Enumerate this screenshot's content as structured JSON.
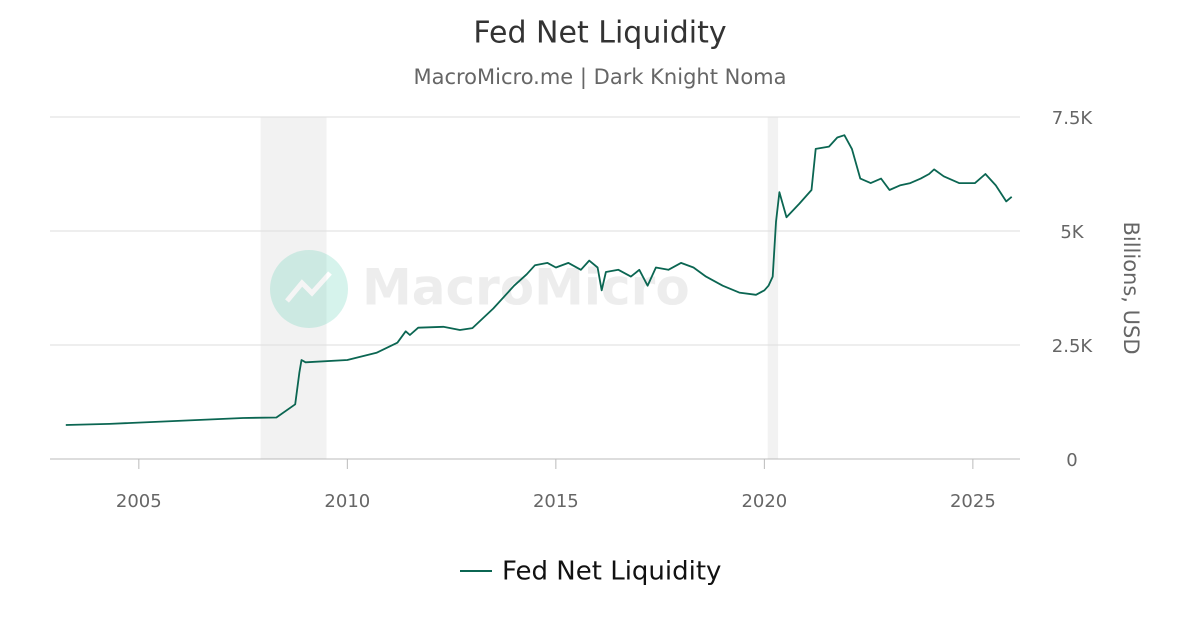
{
  "chart_data": {
    "type": "line",
    "title": "Fed Net Liquidity",
    "subtitle": "MacroMicro.me | Dark Knight Noma",
    "watermark": "MacroMicro",
    "y_axis_label": "Billions, USD",
    "xlim": [
      2002.87,
      2026.13
    ],
    "xticks": [
      2005,
      2010,
      2015,
      2020,
      2025
    ],
    "ylim": [
      0,
      7500
    ],
    "yticks": [
      0,
      {
        "value": 2500,
        "label": "2.5K"
      },
      {
        "value": 5000,
        "label": "5K"
      },
      {
        "value": 7500,
        "label": "7.5K"
      }
    ],
    "grid": true,
    "shaded_ranges": [
      [
        2007.92,
        2009.5
      ],
      [
        2020.08,
        2020.33
      ]
    ],
    "shade_color": "#f2f2f2",
    "legend": "bottom",
    "x": [
      2003.25,
      2004.3,
      2007.5,
      2008.3,
      2008.75,
      2008.85,
      2008.9,
      2009.0,
      2010.0,
      2010.7,
      2011.2,
      2011.4,
      2011.5,
      2011.7,
      2012.3,
      2012.7,
      2013.0,
      2013.5,
      2014.0,
      2014.3,
      2014.5,
      2014.8,
      2015.0,
      2015.3,
      2015.6,
      2015.8,
      2016.0,
      2016.1,
      2016.2,
      2016.5,
      2016.8,
      2017.0,
      2017.2,
      2017.4,
      2017.7,
      2018.0,
      2018.3,
      2018.6,
      2019.0,
      2019.4,
      2019.8,
      2020.0,
      2020.1,
      2020.2,
      2020.28,
      2020.36,
      2020.53,
      2020.84,
      2021.13,
      2021.23,
      2021.55,
      2021.75,
      2021.92,
      2022.1,
      2022.3,
      2022.55,
      2022.8,
      2023.0,
      2023.25,
      2023.5,
      2023.75,
      2023.95,
      2024.07,
      2024.3,
      2024.67,
      2025.05,
      2025.3,
      2025.55,
      2025.8,
      2025.93
    ],
    "series": [
      {
        "name": "Fed Net Liquidity",
        "color": "#0b6652",
        "values": [
          745,
          770,
          900,
          910,
          1200,
          1900,
          2170,
          2120,
          2170,
          2330,
          2550,
          2800,
          2720,
          2880,
          2900,
          2830,
          2870,
          3300,
          3800,
          4050,
          4250,
          4300,
          4200,
          4300,
          4150,
          4350,
          4200,
          3700,
          4100,
          4150,
          4000,
          4150,
          3800,
          4200,
          4150,
          4300,
          4200,
          4000,
          3800,
          3650,
          3600,
          3700,
          3800,
          4000,
          5200,
          5850,
          5300,
          5600,
          5900,
          6800,
          6850,
          7050,
          7100,
          6800,
          6150,
          6050,
          6150,
          5900,
          6000,
          6050,
          6150,
          6250,
          6350,
          6200,
          6050,
          6050,
          6250,
          6000,
          5650,
          5750
        ]
      }
    ]
  }
}
